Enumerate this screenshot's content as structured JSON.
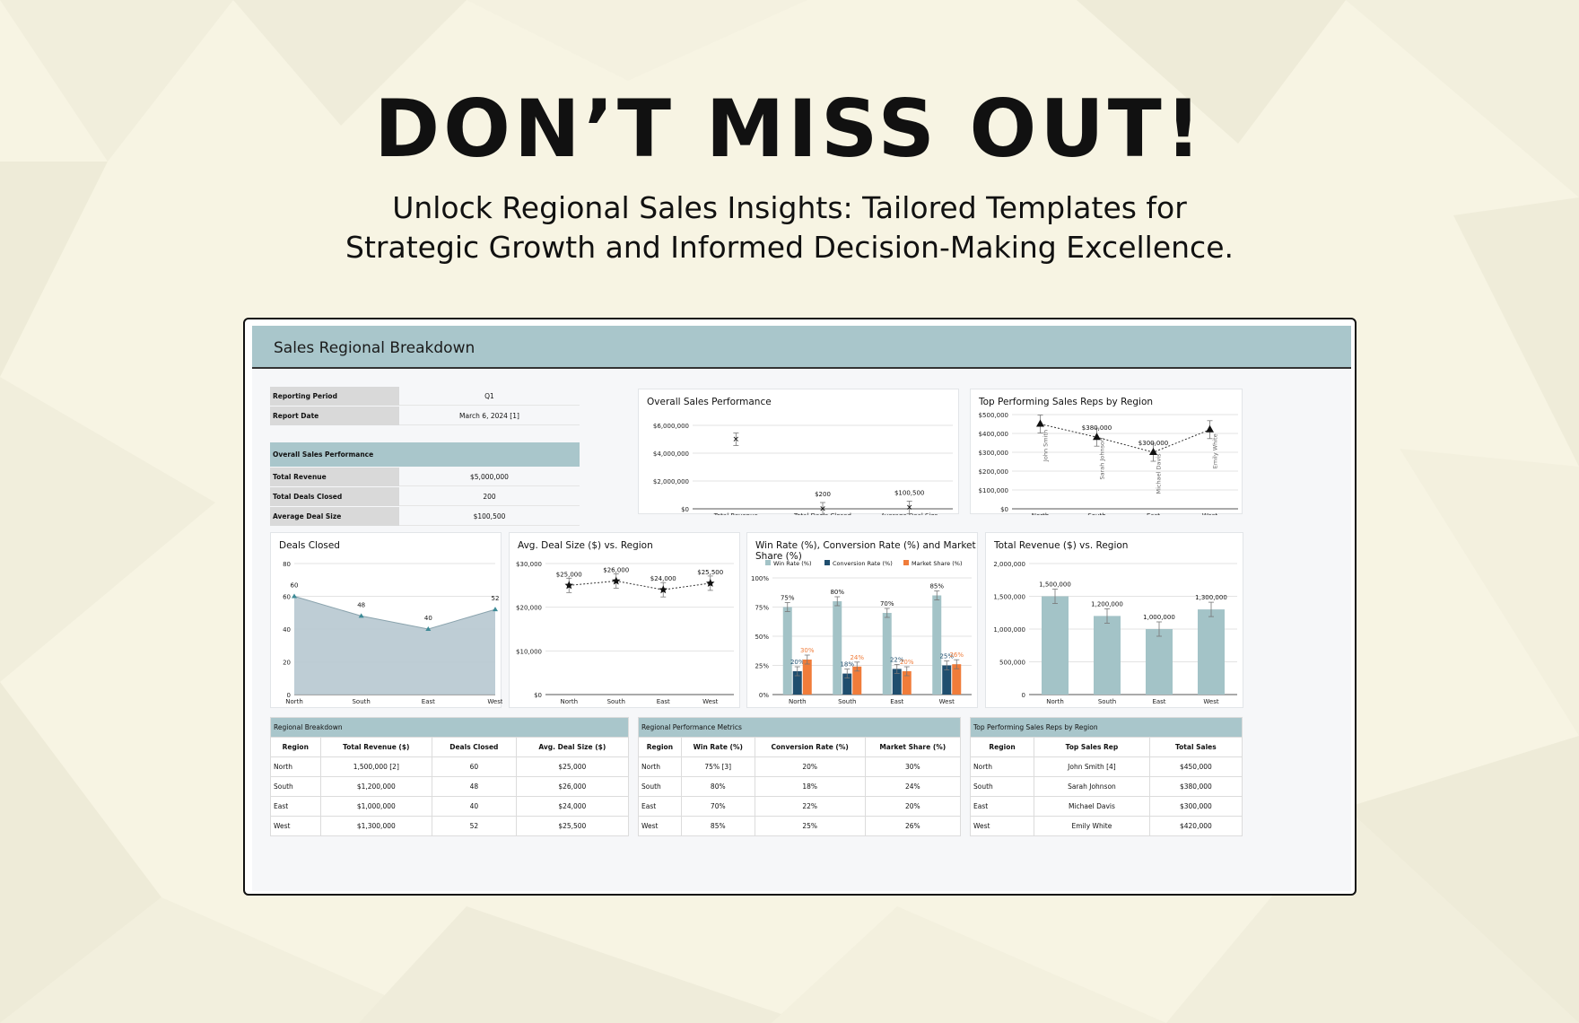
{
  "banner": {
    "headline": "DON’T MISS OUT!",
    "subline_1": "Unlock Regional Sales Insights: Tailored Templates for",
    "subline_2": "Strategic Growth and Informed Decision-Making Excellence."
  },
  "sheet": {
    "title": "Sales Regional Breakdown",
    "reporting": [
      {
        "label": "Reporting Period",
        "value": "Q1"
      },
      {
        "label": "Report Date",
        "value": "March 6, 2024 [1]"
      }
    ],
    "overview": {
      "heading": "Overall Sales Performance",
      "rows": [
        {
          "label": "Total Revenue",
          "value": "$5,000,000"
        },
        {
          "label": "Total Deals Closed",
          "value": "200"
        },
        {
          "label": "Average Deal Size",
          "value": "$100,500"
        }
      ]
    },
    "tables": {
      "regional_breakdown": {
        "title": "Regional Breakdown",
        "headers": [
          "Region",
          "Total Revenue ($)",
          "Deals Closed",
          "Avg. Deal Size ($)"
        ],
        "rows": [
          [
            "North",
            "1,500,000 [2]",
            "60",
            "$25,000"
          ],
          [
            "South",
            "$1,200,000",
            "48",
            "$26,000"
          ],
          [
            "East",
            "$1,000,000",
            "40",
            "$24,000"
          ],
          [
            "West",
            "$1,300,000",
            "52",
            "$25,500"
          ]
        ]
      },
      "performance_metrics": {
        "title": "Regional Performance Metrics",
        "headers": [
          "Region",
          "Win Rate (%)",
          "Conversion Rate (%)",
          "Market Share (%)"
        ],
        "rows": [
          [
            "North",
            "75% [3]",
            "20%",
            "30%"
          ],
          [
            "South",
            "80%",
            "18%",
            "24%"
          ],
          [
            "East",
            "70%",
            "22%",
            "20%"
          ],
          [
            "West",
            "85%",
            "25%",
            "26%"
          ]
        ]
      },
      "top_reps": {
        "title": "Top Performing Sales Reps by Region",
        "headers": [
          "Region",
          "Top Sales Rep",
          "Total Sales"
        ],
        "rows": [
          [
            "North",
            "John Smith [4]",
            "$450,000"
          ],
          [
            "South",
            "Sarah Johnson",
            "$380,000"
          ],
          [
            "East",
            "Michael Davis",
            "$300,000"
          ],
          [
            "West",
            "Emily White",
            "$420,000"
          ]
        ]
      }
    }
  },
  "colors": {
    "teal": "#a9c6cb",
    "navy": "#1f4e6e",
    "orange": "#f07c3a",
    "area_fill": "#b7c8d0",
    "bar_teal": "#a3c3c7"
  },
  "chart_data": [
    {
      "id": "overall",
      "type": "scatter",
      "title": "Overall Sales Performance",
      "categories": [
        "Total Revenue",
        "Total Deals Closed",
        "Average Deal Size"
      ],
      "values": [
        5000000,
        200,
        100500
      ],
      "data_labels": [
        "",
        "$200",
        "$100,500"
      ],
      "ylim": [
        0,
        6000000
      ],
      "yticks": [
        0,
        2000000,
        4000000,
        6000000
      ],
      "ytick_labels": [
        "$0",
        "$2,000,000",
        "$4,000,000",
        "$6,000,000"
      ]
    },
    {
      "id": "toprep",
      "type": "line",
      "title": "Top Performing Sales Reps by Region",
      "categories": [
        "North",
        "South",
        "East",
        "West"
      ],
      "values": [
        450000,
        380000,
        300000,
        420000
      ],
      "data_labels": [
        "",
        "$380,000",
        "$300,000",
        ""
      ],
      "point_labels": [
        "John Smith",
        "Sarah Johnson",
        "Michael Davis",
        "Emily White"
      ],
      "ylim": [
        0,
        500000
      ],
      "yticks": [
        0,
        100000,
        200000,
        300000,
        400000,
        500000
      ],
      "ytick_labels": [
        "$0",
        "$100,000",
        "$200,000",
        "$300,000",
        "$400,000",
        "$500,000"
      ]
    },
    {
      "id": "deals",
      "type": "area",
      "title": "Deals Closed",
      "categories": [
        "North",
        "South",
        "East",
        "West"
      ],
      "values": [
        60,
        48,
        40,
        52
      ],
      "data_labels": [
        "60",
        "48",
        "40",
        "52"
      ],
      "ylim": [
        0,
        80
      ],
      "yticks": [
        0,
        20,
        40,
        60,
        80
      ],
      "ytick_labels": [
        "0",
        "20",
        "40",
        "60",
        "80"
      ]
    },
    {
      "id": "avgdeal",
      "type": "line",
      "title": "Avg. Deal Size ($) vs. Region",
      "categories": [
        "North",
        "South",
        "East",
        "West"
      ],
      "values": [
        25000,
        26000,
        24000,
        25500
      ],
      "data_labels": [
        "$25,000",
        "$26,000",
        "$24,000",
        "$25,500"
      ],
      "ylim": [
        0,
        30000
      ],
      "yticks": [
        0,
        10000,
        20000,
        30000
      ],
      "ytick_labels": [
        "$0",
        "$10,000",
        "$20,000",
        "$30,000"
      ]
    },
    {
      "id": "rates",
      "type": "bar",
      "title": "Win Rate (%), Conversion Rate (%) and Market Share (%)",
      "categories": [
        "North",
        "South",
        "East",
        "West"
      ],
      "series": [
        {
          "name": "Win Rate (%)",
          "values": [
            75,
            80,
            70,
            85
          ],
          "labels": [
            "75%",
            "80%",
            "70%",
            "85%"
          ]
        },
        {
          "name": "Conversion Rate (%)",
          "values": [
            20,
            18,
            22,
            25
          ],
          "labels": [
            "20%",
            "18%",
            "22%",
            "25%"
          ]
        },
        {
          "name": "Market Share (%)",
          "values": [
            30,
            24,
            20,
            26
          ],
          "labels": [
            "30%",
            "24%",
            "20%",
            "26%"
          ]
        }
      ],
      "ylim": [
        0,
        100
      ],
      "yticks": [
        0,
        25,
        50,
        75,
        100
      ],
      "ytick_labels": [
        "0%",
        "25%",
        "50%",
        "75%",
        "100%"
      ],
      "legend": "top"
    },
    {
      "id": "revenue",
      "type": "bar",
      "title": "Total Revenue ($) vs. Region",
      "categories": [
        "North",
        "South",
        "East",
        "West"
      ],
      "values": [
        1500000,
        1200000,
        1000000,
        1300000
      ],
      "data_labels": [
        "1,500,000",
        "1,200,000",
        "1,000,000",
        "1,300,000"
      ],
      "ylim": [
        0,
        2000000
      ],
      "yticks": [
        0,
        500000,
        1000000,
        1500000,
        2000000
      ],
      "ytick_labels": [
        "0",
        "500,000",
        "1,000,000",
        "1,500,000",
        "2,000,000"
      ]
    }
  ]
}
